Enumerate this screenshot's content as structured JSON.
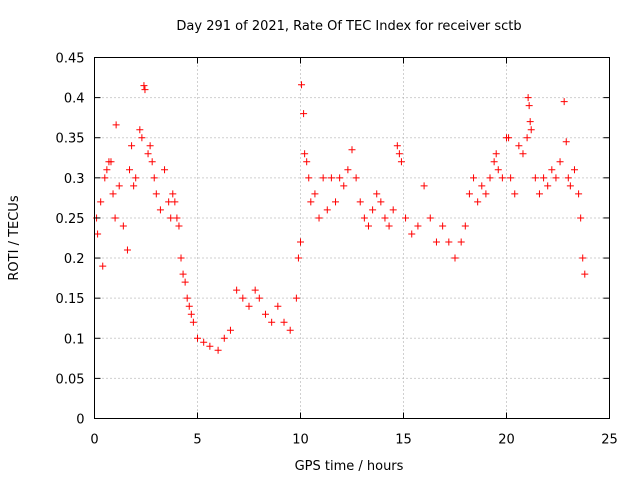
{
  "chart_data": {
    "type": "scatter",
    "title": "Day 291 of 2021, Rate Of TEC Index for receiver sctb",
    "xlabel": "GPS time / hours",
    "ylabel": "ROTI / TECUs",
    "xlim": [
      0,
      25
    ],
    "ylim": [
      0,
      0.45
    ],
    "xticks": [
      0,
      5,
      10,
      15,
      20,
      25
    ],
    "yticks": [
      0,
      0.05,
      0.1,
      0.15,
      0.2,
      0.25,
      0.3,
      0.35,
      0.4,
      0.45
    ],
    "xtick_labels": [
      "0",
      "5",
      "10",
      "15",
      "20",
      "25"
    ],
    "ytick_labels": [
      "0",
      "0.05",
      "0.1",
      "0.15",
      "0.2",
      "0.25",
      "0.3",
      "0.35",
      "0.4",
      "0.45"
    ],
    "grid": true,
    "marker": "+",
    "color": "#ff0000",
    "series": [
      {
        "name": "ROTI",
        "points": [
          [
            0.1,
            0.25
          ],
          [
            0.15,
            0.23
          ],
          [
            0.3,
            0.27
          ],
          [
            0.4,
            0.19
          ],
          [
            0.5,
            0.3
          ],
          [
            0.6,
            0.31
          ],
          [
            0.7,
            0.32
          ],
          [
            0.8,
            0.32
          ],
          [
            0.9,
            0.28
          ],
          [
            1.0,
            0.25
          ],
          [
            1.05,
            0.366
          ],
          [
            1.2,
            0.29
          ],
          [
            1.4,
            0.24
          ],
          [
            1.6,
            0.21
          ],
          [
            1.7,
            0.31
          ],
          [
            1.8,
            0.34
          ],
          [
            1.9,
            0.29
          ],
          [
            2.0,
            0.3
          ],
          [
            2.2,
            0.36
          ],
          [
            2.3,
            0.35
          ],
          [
            2.4,
            0.415
          ],
          [
            2.45,
            0.41
          ],
          [
            2.6,
            0.33
          ],
          [
            2.7,
            0.34
          ],
          [
            2.8,
            0.32
          ],
          [
            2.9,
            0.3
          ],
          [
            3.0,
            0.28
          ],
          [
            3.2,
            0.26
          ],
          [
            3.4,
            0.31
          ],
          [
            3.6,
            0.27
          ],
          [
            3.7,
            0.25
          ],
          [
            3.8,
            0.28
          ],
          [
            3.9,
            0.27
          ],
          [
            4.0,
            0.25
          ],
          [
            4.1,
            0.24
          ],
          [
            4.2,
            0.2
          ],
          [
            4.3,
            0.18
          ],
          [
            4.4,
            0.17
          ],
          [
            4.5,
            0.15
          ],
          [
            4.6,
            0.14
          ],
          [
            4.7,
            0.13
          ],
          [
            4.8,
            0.12
          ],
          [
            5.0,
            0.1
          ],
          [
            5.3,
            0.095
          ],
          [
            5.6,
            0.09
          ],
          [
            6.0,
            0.085
          ],
          [
            6.3,
            0.1
          ],
          [
            6.6,
            0.11
          ],
          [
            6.9,
            0.16
          ],
          [
            7.2,
            0.15
          ],
          [
            7.5,
            0.14
          ],
          [
            7.8,
            0.16
          ],
          [
            8.0,
            0.15
          ],
          [
            8.3,
            0.13
          ],
          [
            8.6,
            0.12
          ],
          [
            8.9,
            0.14
          ],
          [
            9.2,
            0.12
          ],
          [
            9.5,
            0.11
          ],
          [
            9.8,
            0.15
          ],
          [
            9.9,
            0.2
          ],
          [
            10.0,
            0.22
          ],
          [
            10.05,
            0.416
          ],
          [
            10.15,
            0.38
          ],
          [
            10.2,
            0.33
          ],
          [
            10.3,
            0.32
          ],
          [
            10.4,
            0.3
          ],
          [
            10.5,
            0.27
          ],
          [
            10.7,
            0.28
          ],
          [
            10.9,
            0.25
          ],
          [
            11.1,
            0.3
          ],
          [
            11.3,
            0.26
          ],
          [
            11.5,
            0.3
          ],
          [
            11.7,
            0.27
          ],
          [
            11.9,
            0.3
          ],
          [
            12.1,
            0.29
          ],
          [
            12.3,
            0.31
          ],
          [
            12.5,
            0.335
          ],
          [
            12.7,
            0.3
          ],
          [
            12.9,
            0.27
          ],
          [
            13.1,
            0.25
          ],
          [
            13.3,
            0.24
          ],
          [
            13.5,
            0.26
          ],
          [
            13.7,
            0.28
          ],
          [
            13.9,
            0.27
          ],
          [
            14.1,
            0.25
          ],
          [
            14.3,
            0.24
          ],
          [
            14.5,
            0.26
          ],
          [
            14.7,
            0.34
          ],
          [
            14.8,
            0.33
          ],
          [
            14.9,
            0.32
          ],
          [
            15.1,
            0.25
          ],
          [
            15.4,
            0.23
          ],
          [
            15.7,
            0.24
          ],
          [
            16.0,
            0.29
          ],
          [
            16.3,
            0.25
          ],
          [
            16.6,
            0.22
          ],
          [
            16.9,
            0.24
          ],
          [
            17.2,
            0.22
          ],
          [
            17.5,
            0.2
          ],
          [
            17.8,
            0.22
          ],
          [
            18.0,
            0.24
          ],
          [
            18.2,
            0.28
          ],
          [
            18.4,
            0.3
          ],
          [
            18.6,
            0.27
          ],
          [
            18.8,
            0.29
          ],
          [
            19.0,
            0.28
          ],
          [
            19.2,
            0.3
          ],
          [
            19.4,
            0.32
          ],
          [
            19.5,
            0.33
          ],
          [
            19.6,
            0.31
          ],
          [
            19.8,
            0.3
          ],
          [
            20.0,
            0.35
          ],
          [
            20.1,
            0.35
          ],
          [
            20.2,
            0.3
          ],
          [
            20.4,
            0.28
          ],
          [
            20.6,
            0.34
          ],
          [
            20.8,
            0.33
          ],
          [
            21.0,
            0.35
          ],
          [
            21.05,
            0.4
          ],
          [
            21.1,
            0.39
          ],
          [
            21.15,
            0.37
          ],
          [
            21.2,
            0.36
          ],
          [
            21.4,
            0.3
          ],
          [
            21.6,
            0.28
          ],
          [
            21.8,
            0.3
          ],
          [
            22.0,
            0.29
          ],
          [
            22.2,
            0.31
          ],
          [
            22.4,
            0.3
          ],
          [
            22.6,
            0.32
          ],
          [
            22.8,
            0.395
          ],
          [
            22.9,
            0.345
          ],
          [
            23.0,
            0.3
          ],
          [
            23.1,
            0.29
          ],
          [
            23.3,
            0.31
          ],
          [
            23.5,
            0.28
          ],
          [
            23.6,
            0.25
          ],
          [
            23.7,
            0.2
          ],
          [
            23.8,
            0.18
          ]
        ]
      }
    ]
  }
}
